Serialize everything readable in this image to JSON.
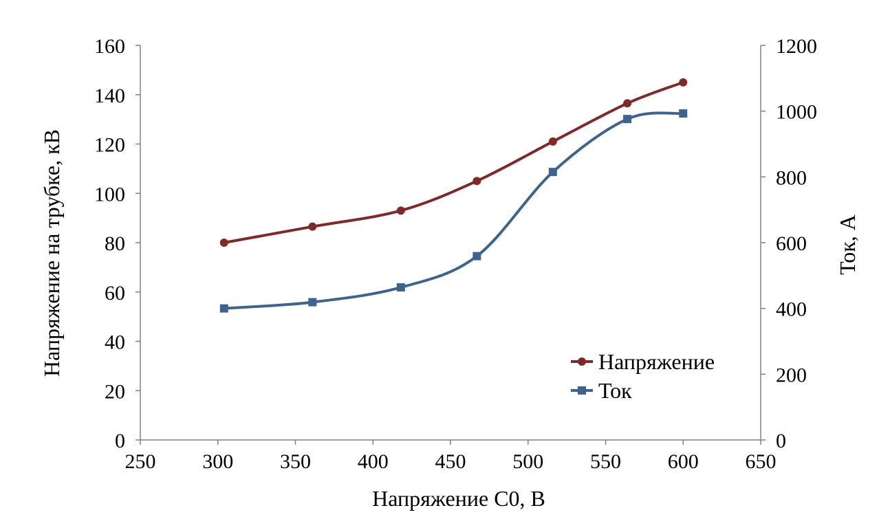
{
  "chart_data": {
    "type": "line",
    "title": "",
    "xlabel": "Напряжение C0, В",
    "ylabel": "Напряжение на трубке, кВ",
    "y2label": "Ток, А",
    "xlim": [
      250,
      650
    ],
    "ylim": [
      0,
      160
    ],
    "y2lim": [
      0,
      1200
    ],
    "xticks": [
      250,
      300,
      350,
      400,
      450,
      500,
      550,
      600,
      650
    ],
    "yticks": [
      0,
      20,
      40,
      60,
      80,
      100,
      120,
      140,
      160
    ],
    "y2ticks": [
      0,
      200,
      400,
      600,
      800,
      1000,
      1200
    ],
    "grid": false,
    "legend_position": "bottom-right",
    "series": [
      {
        "name": "Напряжение",
        "axis": "left",
        "color": "#7f2a2a",
        "marker": "circle",
        "x": [
          304,
          361,
          418,
          467,
          516,
          564,
          600
        ],
        "y": [
          80,
          86.5,
          93,
          105,
          121,
          136.5,
          145
        ]
      },
      {
        "name": "Ток",
        "axis": "right",
        "color": "#3e648e",
        "marker": "square",
        "x": [
          304,
          361,
          418,
          467,
          516,
          564,
          600
        ],
        "y": [
          400,
          419,
          464,
          559,
          815,
          976,
          993
        ]
      }
    ]
  }
}
